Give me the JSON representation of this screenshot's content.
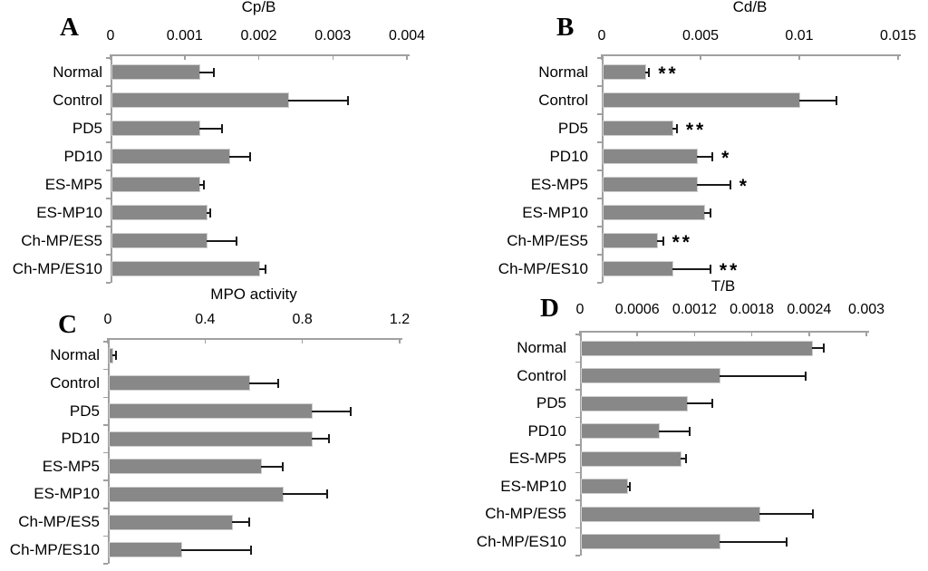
{
  "figure": {
    "background": "#ffffff",
    "bar_color": "#888888",
    "bar_border_color": "#cfcfcf",
    "axis_color": "#a0a0a0",
    "error_color": "#1a1a1a",
    "text_color": "#000000"
  },
  "chart_data": [
    {
      "panel_label": "A",
      "type": "bar",
      "orientation": "horizontal",
      "title": "Cp/B",
      "xlim": [
        0,
        0.004
      ],
      "tick_values": [
        0,
        0.001,
        0.002,
        0.003,
        0.004
      ],
      "tick_labels": [
        "0",
        "0.001",
        "0.002",
        "0.003",
        "0.004"
      ],
      "categories": [
        "Normal",
        "Control",
        "PD5",
        "PD10",
        "ES-MP5",
        "ES-MP10",
        "Ch-MP/ES5",
        "Ch-MP/ES10"
      ],
      "values": [
        0.0012,
        0.0024,
        0.0012,
        0.0016,
        0.0012,
        0.0013,
        0.0013,
        0.002
      ],
      "errors": [
        0.0002,
        0.0008,
        0.0003,
        0.00028,
        6e-05,
        5e-05,
        0.0004,
        9e-05
      ],
      "annotations": [
        "",
        "",
        "",
        "",
        "",
        "",
        "",
        ""
      ]
    },
    {
      "panel_label": "B",
      "type": "bar",
      "orientation": "horizontal",
      "title": "Cd/B",
      "xlim": [
        0,
        0.015
      ],
      "tick_values": [
        0,
        0.005,
        0.01,
        0.015
      ],
      "tick_labels": [
        "0",
        "0.005",
        "0.01",
        "0.015"
      ],
      "categories": [
        "Normal",
        "Control",
        "PD5",
        "PD10",
        "ES-MP5",
        "ES-MP10",
        "Ch-MP/ES5",
        "Ch-MP/ES10"
      ],
      "values": [
        0.0022,
        0.01,
        0.0036,
        0.0048,
        0.0048,
        0.0052,
        0.0028,
        0.0036
      ],
      "errors": [
        0.0002,
        0.0019,
        0.0002,
        0.0008,
        0.0017,
        0.0003,
        0.0003,
        0.0019
      ],
      "annotations": [
        "**",
        "",
        "**",
        "*",
        "*",
        "",
        "**",
        "**"
      ]
    },
    {
      "panel_label": "C",
      "type": "bar",
      "orientation": "horizontal",
      "title": "MPO activity",
      "xlim": [
        0,
        1.2
      ],
      "tick_values": [
        0,
        0.4,
        0.8,
        1.2
      ],
      "tick_labels": [
        "0",
        "0.4",
        "0.8",
        "1.2"
      ],
      "categories": [
        "Normal",
        "Control",
        "PD5",
        "PD10",
        "ES-MP5",
        "ES-MP10",
        "Ch-MP/ES5",
        "Ch-MP/ES10"
      ],
      "values": [
        0.02,
        0.58,
        0.84,
        0.84,
        0.63,
        0.72,
        0.51,
        0.3
      ],
      "errors": [
        0.015,
        0.12,
        0.16,
        0.07,
        0.09,
        0.18,
        0.07,
        0.29
      ],
      "annotations": [
        "",
        "",
        "",
        "",
        "",
        "",
        "",
        ""
      ]
    },
    {
      "panel_label": "D",
      "type": "bar",
      "orientation": "horizontal",
      "title": "T/B",
      "xlim": [
        0,
        0.003
      ],
      "tick_values": [
        0,
        0.0006,
        0.0012,
        0.0018,
        0.0024,
        0.003
      ],
      "tick_labels": [
        "0",
        "0.0006",
        "0.0012",
        "0.0018",
        "0.0024",
        "0.003"
      ],
      "categories": [
        "Normal",
        "Control",
        "PD5",
        "PD10",
        "ES-MP5",
        "ES-MP10",
        "Ch-MP/ES5",
        "Ch-MP/ES10"
      ],
      "values": [
        0.00243,
        0.00146,
        0.00112,
        0.00083,
        0.00105,
        0.00049,
        0.00188,
        0.00146
      ],
      "errors": [
        0.00012,
        0.0009,
        0.00027,
        0.00032,
        6e-05,
        3e-05,
        0.00056,
        0.0007
      ],
      "annotations": [
        "",
        "",
        "",
        "",
        "",
        "",
        "",
        ""
      ]
    }
  ]
}
